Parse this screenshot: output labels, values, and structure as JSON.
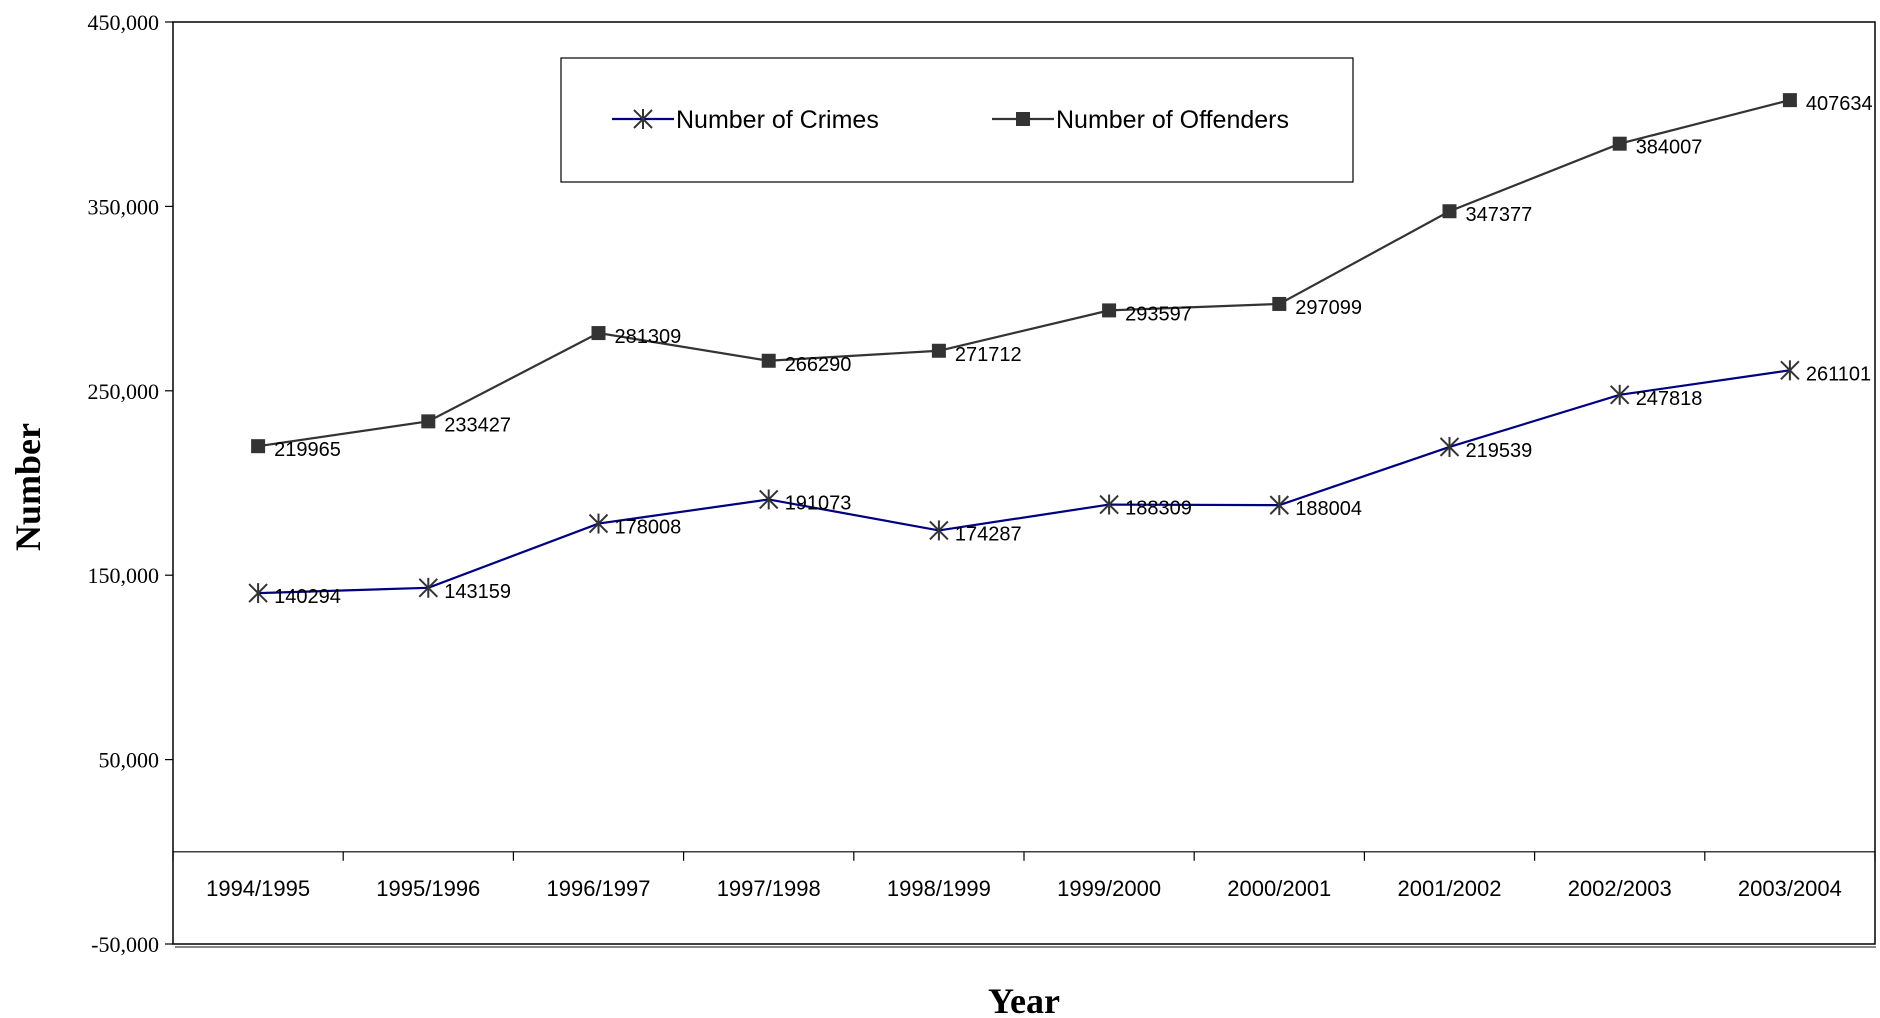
{
  "chart_data": {
    "type": "line",
    "xlabel": "Year",
    "ylabel": "Number",
    "ylim": [
      -50000,
      450000
    ],
    "yticks": [
      -50000,
      50000,
      150000,
      250000,
      350000,
      450000
    ],
    "ytick_labels": [
      "-50,000",
      "50,000",
      "150,000",
      "250,000",
      "350,000",
      "450,000"
    ],
    "categories": [
      "1994/1995",
      "1995/1996",
      "1996/1997",
      "1997/1998",
      "1998/1999",
      "1999/2000",
      "2000/2001",
      "2001/2002",
      "2002/2003",
      "2003/2004"
    ],
    "legend_position": "top-center",
    "grid": false,
    "series": [
      {
        "name": "Number of Crimes",
        "marker": "star",
        "color": "#000080",
        "marker_color": "#333333",
        "values": [
          140294,
          143159,
          178008,
          191073,
          174287,
          188309,
          188004,
          219539,
          247818,
          261101
        ],
        "labels": [
          "140294",
          "143159",
          "178008",
          "191073",
          "174287",
          "188309",
          "188004",
          "219539",
          "247818",
          "261101"
        ]
      },
      {
        "name": "Number of Offenders",
        "marker": "square",
        "color": "#333333",
        "marker_color": "#333333",
        "values": [
          219965,
          233427,
          281309,
          266290,
          271712,
          293597,
          297099,
          347377,
          384007,
          407634
        ],
        "labels": [
          "219965",
          "233427",
          "281309",
          "266290",
          "271712",
          "293597",
          "297099",
          "347377",
          "384007",
          "407634"
        ]
      }
    ]
  }
}
